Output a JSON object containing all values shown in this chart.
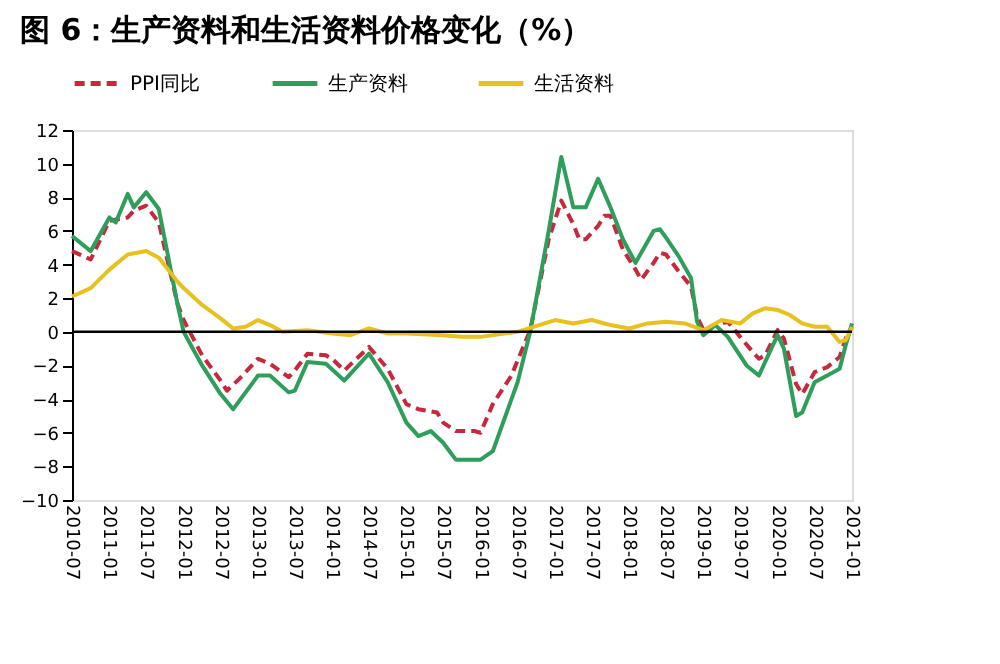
{
  "chart_data": {
    "type": "line",
    "title": "图 6：生产资料和生活资料价格变化（%）",
    "xlim": [
      "2010-07",
      "2021-01"
    ],
    "xticks": [
      "2010-07",
      "2011-01",
      "2011-07",
      "2012-01",
      "2012-07",
      "2013-01",
      "2013-07",
      "2014-01",
      "2014-07",
      "2015-01",
      "2015-07",
      "2016-01",
      "2016-07",
      "2017-01",
      "2017-07",
      "2018-01",
      "2018-07",
      "2019-01",
      "2019-07",
      "2020-01",
      "2020-07",
      "2021-01"
    ],
    "ylim": [
      -10,
      12
    ],
    "yticks": [
      -10,
      -8,
      -6,
      -4,
      -2,
      0,
      2,
      4,
      6,
      8,
      10,
      12
    ],
    "grid": false,
    "legend": "top",
    "ref_lines": [
      {
        "axis": "y",
        "value": 0,
        "color": "#000000"
      }
    ],
    "series": [
      {
        "name": "PPI同比",
        "color": "#c8283c",
        "line_style": "dashed",
        "x": [
          "2010-07",
          "2010-10",
          "2011-01",
          "2011-04",
          "2011-05",
          "2011-07",
          "2011-09",
          "2011-12",
          "2012-01",
          "2012-04",
          "2012-07",
          "2012-08",
          "2012-10",
          "2013-01",
          "2013-03",
          "2013-06",
          "2013-07",
          "2013-09",
          "2013-12",
          "2014-01",
          "2014-03",
          "2014-07",
          "2014-10",
          "2015-01",
          "2015-03",
          "2015-06",
          "2015-07",
          "2015-09",
          "2015-12",
          "2016-01",
          "2016-03",
          "2016-06",
          "2016-07",
          "2016-09",
          "2016-12",
          "2017-02",
          "2017-04",
          "2017-05",
          "2017-06",
          "2017-08",
          "2017-09",
          "2017-10",
          "2017-12",
          "2018-02",
          "2018-03",
          "2018-05",
          "2018-06",
          "2018-07",
          "2018-09",
          "2018-11",
          "2018-12",
          "2019-01",
          "2019-03",
          "2019-05",
          "2019-07",
          "2019-09",
          "2019-10",
          "2019-11",
          "2020-01",
          "2020-02",
          "2020-04",
          "2020-05",
          "2020-07",
          "2020-09",
          "2020-11",
          "2020-12",
          "2021-01"
        ],
        "values": [
          4.8,
          4.3,
          6.6,
          6.8,
          7.2,
          7.5,
          6.5,
          1.7,
          0.7,
          -1.4,
          -2.9,
          -3.5,
          -2.8,
          -1.6,
          -1.9,
          -2.7,
          -2.3,
          -1.3,
          -1.4,
          -1.6,
          -2.3,
          -0.9,
          -2.2,
          -4.3,
          -4.6,
          -4.8,
          -5.4,
          -5.9,
          -5.9,
          -6.0,
          -4.3,
          -2.6,
          -1.7,
          0.1,
          5.5,
          7.8,
          6.4,
          5.5,
          5.5,
          6.3,
          6.9,
          6.9,
          4.9,
          3.7,
          3.1,
          4.1,
          4.7,
          4.6,
          3.6,
          2.7,
          0.9,
          0.1,
          0.4,
          0.6,
          -0.3,
          -1.2,
          -1.6,
          -1.4,
          0.1,
          -0.4,
          -3.1,
          -3.7,
          -2.4,
          -2.1,
          -1.5,
          -0.4,
          0.3
        ]
      },
      {
        "name": "生产资料",
        "color": "#2e9e5b",
        "line_style": "solid",
        "x": [
          "2010-07",
          "2010-10",
          "2011-01",
          "2011-02",
          "2011-04",
          "2011-05",
          "2011-07",
          "2011-09",
          "2011-12",
          "2012-01",
          "2012-04",
          "2012-07",
          "2012-09",
          "2012-11",
          "2013-01",
          "2013-03",
          "2013-06",
          "2013-07",
          "2013-09",
          "2013-12",
          "2014-03",
          "2014-07",
          "2014-10",
          "2015-01",
          "2015-03",
          "2015-05",
          "2015-07",
          "2015-09",
          "2015-12",
          "2016-01",
          "2016-03",
          "2016-06",
          "2016-07",
          "2016-09",
          "2016-12",
          "2017-02",
          "2017-04",
          "2017-06",
          "2017-08",
          "2017-10",
          "2017-12",
          "2018-02",
          "2018-05",
          "2018-06",
          "2018-07",
          "2018-09",
          "2018-11",
          "2018-12",
          "2019-01",
          "2019-03",
          "2019-05",
          "2019-08",
          "2019-10",
          "2019-12",
          "2020-01",
          "2020-02",
          "2020-04",
          "2020-05",
          "2020-07",
          "2020-09",
          "2020-11",
          "2020-12",
          "2021-01"
        ],
        "values": [
          5.7,
          4.8,
          6.8,
          6.5,
          8.2,
          7.4,
          8.3,
          7.3,
          1.7,
          0.0,
          -2.0,
          -3.7,
          -4.6,
          -3.6,
          -2.6,
          -2.6,
          -3.6,
          -3.5,
          -1.8,
          -1.9,
          -2.9,
          -1.3,
          -3.0,
          -5.4,
          -6.2,
          -5.9,
          -6.6,
          -7.6,
          -7.6,
          -7.6,
          -7.1,
          -4.0,
          -3.0,
          0.0,
          6.0,
          10.4,
          7.4,
          7.4,
          9.1,
          7.4,
          5.5,
          4.1,
          6.0,
          6.1,
          5.6,
          4.5,
          3.2,
          0.6,
          -0.2,
          0.4,
          -0.3,
          -2.0,
          -2.6,
          -1.0,
          -0.2,
          -1.0,
          -5.0,
          -4.8,
          -3.0,
          -2.6,
          -2.2,
          -0.8,
          0.5
        ]
      },
      {
        "name": "生活资料",
        "color": "#e8c020",
        "line_style": "solid",
        "x": [
          "2010-07",
          "2010-10",
          "2011-01",
          "2011-04",
          "2011-07",
          "2011-09",
          "2011-12",
          "2012-01",
          "2012-04",
          "2012-07",
          "2012-09",
          "2012-11",
          "2013-01",
          "2013-03",
          "2013-05",
          "2013-09",
          "2014-01",
          "2014-04",
          "2014-07",
          "2014-10",
          "2015-01",
          "2015-07",
          "2015-10",
          "2016-01",
          "2016-07",
          "2017-01",
          "2017-04",
          "2017-07",
          "2017-10",
          "2018-01",
          "2018-04",
          "2018-07",
          "2018-10",
          "2019-01",
          "2019-04",
          "2019-07",
          "2019-09",
          "2019-11",
          "2020-01",
          "2020-03",
          "2020-05",
          "2020-07",
          "2020-09",
          "2020-11",
          "2020-12",
          "2021-01"
        ],
        "values": [
          2.1,
          2.6,
          3.7,
          4.6,
          4.8,
          4.4,
          3.0,
          2.6,
          1.6,
          0.8,
          0.2,
          0.3,
          0.7,
          0.4,
          0.0,
          0.1,
          -0.1,
          -0.2,
          0.2,
          -0.1,
          -0.1,
          -0.2,
          -0.3,
          -0.3,
          0.0,
          0.7,
          0.5,
          0.7,
          0.4,
          0.2,
          0.5,
          0.6,
          0.5,
          0.1,
          0.7,
          0.5,
          1.1,
          1.4,
          1.3,
          1.0,
          0.5,
          0.3,
          0.3,
          -0.6,
          -0.5,
          0.3
        ]
      }
    ]
  }
}
